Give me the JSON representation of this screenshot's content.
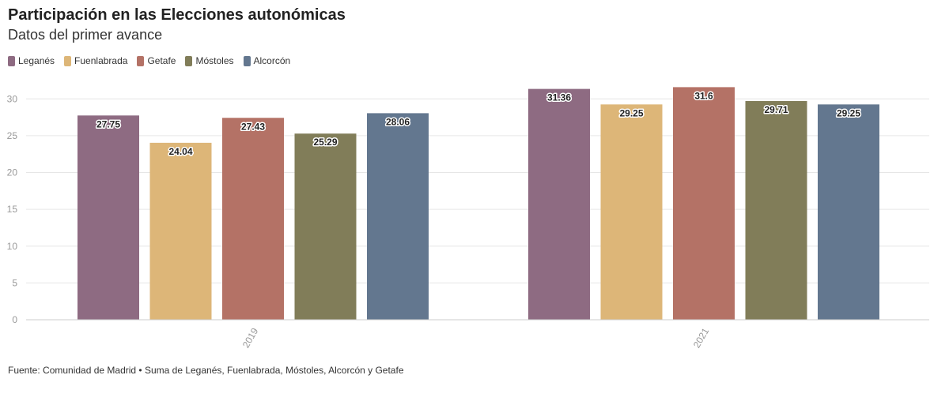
{
  "chart_data": {
    "type": "bar",
    "title": "Participación en las Elecciones autonómicas",
    "subtitle": "Datos del primer avance",
    "categories": [
      "2019",
      "2021"
    ],
    "series": [
      {
        "name": "Leganés",
        "color": "#8e6b82",
        "values": [
          27.75,
          31.36
        ]
      },
      {
        "name": "Fuenlabrada",
        "color": "#ddb678",
        "values": [
          24.04,
          29.25
        ]
      },
      {
        "name": "Getafe",
        "color": "#b47266",
        "values": [
          27.43,
          31.6
        ]
      },
      {
        "name": "Móstoles",
        "color": "#817d59",
        "values": [
          25.29,
          29.71
        ]
      },
      {
        "name": "Alcorcón",
        "color": "#63778f",
        "values": [
          28.06,
          29.25
        ]
      }
    ],
    "y_ticks": [
      "0",
      "5",
      "10",
      "15",
      "20",
      "25",
      "30"
    ],
    "ylim": [
      0,
      32.5
    ],
    "grid": true,
    "legend_position": "top-left",
    "source": "Fuente: Comunidad de Madrid • Suma de Leganés, Fuenlabrada, Móstoles, Alcorcón y Getafe"
  }
}
